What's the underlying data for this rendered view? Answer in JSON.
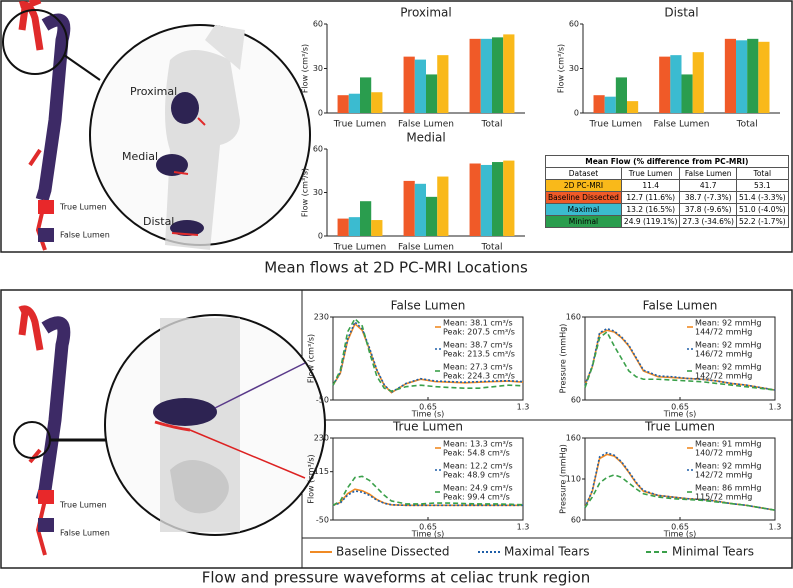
{
  "chart_data": [
    {
      "type": "bar",
      "title": "Proximal",
      "ylabel": "Flow (cm³/s)",
      "categories": [
        "True Lumen",
        "False Lumen",
        "Total"
      ],
      "ylim": [
        0,
        60
      ],
      "yticks": [
        0,
        30,
        60
      ],
      "series": [
        {
          "color": "#f05a28",
          "values": [
            12,
            38,
            50
          ]
        },
        {
          "color": "#3bbbd0",
          "values": [
            13,
            36,
            50
          ]
        },
        {
          "color": "#2a9d4e",
          "values": [
            24,
            26,
            51
          ]
        },
        {
          "color": "#f9b91a",
          "values": [
            14,
            39,
            53
          ]
        }
      ]
    },
    {
      "type": "bar",
      "title": "Distal",
      "ylabel": "Flow (cm³/s)",
      "categories": [
        "True Lumen",
        "False Lumen",
        "Total"
      ],
      "ylim": [
        0,
        60
      ],
      "yticks": [
        0,
        30,
        60
      ],
      "series": [
        {
          "color": "#f05a28",
          "values": [
            12,
            38,
            50
          ]
        },
        {
          "color": "#3bbbd0",
          "values": [
            11,
            39,
            49
          ]
        },
        {
          "color": "#2a9d4e",
          "values": [
            24,
            26,
            50
          ]
        },
        {
          "color": "#f9b91a",
          "values": [
            8,
            41,
            48
          ]
        }
      ]
    },
    {
      "type": "bar",
      "title": "Medial",
      "ylabel": "Flow (cm³/s)",
      "categories": [
        "True Lumen",
        "False Lumen",
        "Total"
      ],
      "ylim": [
        0,
        60
      ],
      "yticks": [
        0,
        30,
        60
      ],
      "series": [
        {
          "color": "#f05a28",
          "values": [
            12,
            38,
            50
          ]
        },
        {
          "color": "#3bbbd0",
          "values": [
            13,
            36,
            49
          ]
        },
        {
          "color": "#2a9d4e",
          "values": [
            24,
            27,
            51
          ]
        },
        {
          "color": "#f9b91a",
          "values": [
            11,
            41,
            52
          ]
        }
      ]
    },
    {
      "type": "line",
      "title": "False Lumen",
      "xlabel": "Time (s)",
      "ylabel": "Flow (cm³/s)",
      "xlim": [
        0,
        1.3
      ],
      "xticks": [
        0.65,
        1.3
      ],
      "ylim": [
        -50,
        230
      ],
      "yticks": [
        -50,
        230
      ],
      "x": [
        0,
        0.05,
        0.1,
        0.15,
        0.2,
        0.25,
        0.3,
        0.35,
        0.4,
        0.5,
        0.6,
        0.7,
        0.8,
        0.9,
        1.0,
        1.1,
        1.2,
        1.3
      ],
      "series": [
        {
          "color": "#f08a24",
          "dash": "solid",
          "annotations": [
            "Mean: 38.1 cm³/s",
            "Peak: 207.5 cm³/s"
          ],
          "values": [
            0,
            40,
            150,
            207,
            185,
            120,
            50,
            0,
            -25,
            5,
            20,
            12,
            10,
            8,
            10,
            12,
            14,
            10
          ]
        },
        {
          "color": "#1f5fa8",
          "dash": "dotted",
          "annotations": [
            "Mean: 38.7 cm³/s",
            "Peak: 213.5 cm³/s"
          ],
          "values": [
            0,
            42,
            155,
            213,
            190,
            125,
            52,
            2,
            -24,
            6,
            22,
            14,
            12,
            10,
            12,
            14,
            15,
            12
          ]
        },
        {
          "color": "#3aa04a",
          "dash": "dashed",
          "annotations": [
            "Mean: 27.3 cm³/s",
            "Peak: 224.3 cm³/s"
          ],
          "values": [
            0,
            50,
            180,
            224,
            200,
            110,
            30,
            -10,
            -20,
            -5,
            0,
            -5,
            -8,
            -10,
            -10,
            -5,
            0,
            -2
          ]
        }
      ]
    },
    {
      "type": "line",
      "title": "False Lumen",
      "xlabel": "Time (s)",
      "ylabel": "Pressure (mmHg)",
      "xlim": [
        0,
        1.3
      ],
      "xticks": [
        0.65,
        1.3
      ],
      "ylim": [
        60,
        160
      ],
      "yticks": [
        60,
        160
      ],
      "x": [
        0,
        0.05,
        0.1,
        0.15,
        0.2,
        0.25,
        0.3,
        0.35,
        0.4,
        0.5,
        0.6,
        0.7,
        0.8,
        0.9,
        1.0,
        1.1,
        1.2,
        1.3
      ],
      "series": [
        {
          "color": "#f08a24",
          "dash": "solid",
          "annotations": [
            "Mean: 92 mmHg",
            "144/72 mmHg"
          ],
          "values": [
            78,
            100,
            140,
            144,
            142,
            135,
            125,
            110,
            95,
            88,
            87,
            86,
            85,
            83,
            80,
            78,
            75,
            72
          ]
        },
        {
          "color": "#1f5fa8",
          "dash": "dotted",
          "annotations": [
            "Mean: 92 mmHg",
            "146/72 mmHg"
          ],
          "values": [
            78,
            101,
            141,
            146,
            143,
            136,
            126,
            111,
            96,
            89,
            88,
            86,
            85,
            83,
            80,
            78,
            75,
            72
          ]
        },
        {
          "color": "#3aa04a",
          "dash": "dashed",
          "annotations": [
            "Mean: 92 mmHg",
            "142/72 mmHg"
          ],
          "values": [
            75,
            100,
            135,
            142,
            125,
            110,
            95,
            88,
            85,
            85,
            84,
            83,
            82,
            80,
            78,
            76,
            74,
            72
          ]
        }
      ]
    },
    {
      "type": "line",
      "title": "True Lumen",
      "xlabel": "Time (s)",
      "ylabel": "Flow (cm³/s)",
      "xlim": [
        0,
        1.3
      ],
      "xticks": [
        0.65,
        1.3
      ],
      "ylim": [
        -50,
        230
      ],
      "yticks": [
        -50,
        115,
        230
      ],
      "x": [
        0,
        0.05,
        0.1,
        0.15,
        0.2,
        0.25,
        0.3,
        0.35,
        0.4,
        0.5,
        0.6,
        0.7,
        0.8,
        0.9,
        1.0,
        1.1,
        1.2,
        1.3
      ],
      "series": [
        {
          "color": "#f08a24",
          "dash": "solid",
          "annotations": [
            "Mean: 13.3 cm³/s",
            "Peak: 54.8 cm³/s"
          ],
          "values": [
            0,
            10,
            40,
            55,
            50,
            38,
            20,
            8,
            2,
            0,
            0,
            0,
            0,
            0,
            0,
            0,
            0,
            0
          ]
        },
        {
          "color": "#1f5fa8",
          "dash": "dotted",
          "annotations": [
            "Mean: 12.2 cm³/s",
            "Peak: 48.9 cm³/s"
          ],
          "values": [
            0,
            8,
            35,
            49,
            45,
            34,
            18,
            7,
            2,
            0,
            0,
            0,
            0,
            0,
            0,
            0,
            0,
            0
          ]
        },
        {
          "color": "#3aa04a",
          "dash": "dashed",
          "annotations": [
            "Mean: 24.9 cm³/s",
            "Peak: 99.4 cm³/s"
          ],
          "values": [
            0,
            15,
            60,
            95,
            99,
            85,
            60,
            35,
            15,
            5,
            5,
            8,
            8,
            6,
            5,
            5,
            4,
            2
          ]
        }
      ]
    },
    {
      "type": "line",
      "title": "True Lumen",
      "xlabel": "Time (s)",
      "ylabel": "Pressure (mmHg)",
      "xlim": [
        0,
        1.3
      ],
      "xticks": [
        0.65,
        1.3
      ],
      "ylim": [
        60,
        160
      ],
      "yticks": [
        60,
        110,
        160
      ],
      "x": [
        0,
        0.05,
        0.1,
        0.15,
        0.2,
        0.25,
        0.3,
        0.35,
        0.4,
        0.5,
        0.6,
        0.7,
        0.8,
        0.9,
        1.0,
        1.1,
        1.2,
        1.3
      ],
      "series": [
        {
          "color": "#f08a24",
          "dash": "solid",
          "annotations": [
            "Mean: 91 mmHg",
            "140/72 mmHg"
          ],
          "values": [
            75,
            95,
            135,
            140,
            138,
            130,
            118,
            105,
            95,
            90,
            88,
            86,
            85,
            83,
            80,
            78,
            75,
            72
          ]
        },
        {
          "color": "#1f5fa8",
          "dash": "dotted",
          "annotations": [
            "Mean: 92 mmHg",
            "142/72 mmHg"
          ],
          "values": [
            75,
            96,
            137,
            142,
            139,
            131,
            119,
            106,
            96,
            90,
            88,
            86,
            85,
            83,
            80,
            78,
            75,
            72
          ]
        },
        {
          "color": "#3aa04a",
          "dash": "dashed",
          "annotations": [
            "Mean: 86 mmHg",
            "115/72 mmHg"
          ],
          "values": [
            75,
            88,
            105,
            112,
            115,
            112,
            105,
            98,
            92,
            88,
            86,
            85,
            84,
            82,
            80,
            78,
            75,
            72
          ]
        }
      ]
    }
  ],
  "table": {
    "title": "Mean Flow (% difference from PC-MRI)",
    "columns": [
      "Dataset",
      "True Lumen",
      "False Lumen",
      "Total"
    ],
    "colors": [
      "#f9b91a",
      "#f05a28",
      "#3bbbd0",
      "#2a9d4e"
    ],
    "rows": [
      [
        "2D PC-MRI",
        "11.4",
        "41.7",
        "53.1"
      ],
      [
        "Baseline Dissected",
        "12.7 (11.6%)",
        "38.7 (-7.3%)",
        "51.4 (-3.3%)"
      ],
      [
        "Maximal",
        "13.2 (16.5%)",
        "37.8 (-9.6%)",
        "51.0 (-4.0%)"
      ],
      [
        "Minimal",
        "24.9 (119.1%)",
        "27.3 (-34.6%)",
        "52.2 (-1.7%)"
      ]
    ]
  },
  "legend": [
    {
      "name": "Baseline Dissected",
      "color": "#f08a24",
      "dash": "solid"
    },
    {
      "name": "Maximal Tears",
      "color": "#1f5fa8",
      "dash": "dotted"
    },
    {
      "name": "Minimal Tears",
      "color": "#3aa04a",
      "dash": "dashed"
    }
  ],
  "illustration": {
    "locations": [
      "Proximal",
      "Medial",
      "Distal"
    ],
    "top_legend": [
      "True Lumen",
      "False Lumen"
    ],
    "bottom_legend": [
      "True Lumen",
      "False Lumen"
    ]
  },
  "captions": [
    "Mean flows at 2D PC-MRI Locations",
    "Flow and pressure waveforms at celiac trunk region"
  ]
}
